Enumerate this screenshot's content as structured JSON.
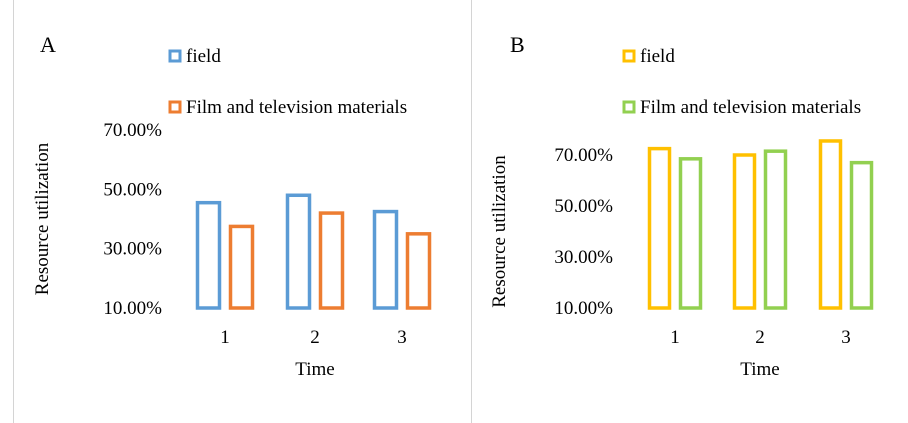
{
  "chart_data": [
    {
      "panel_label": "A",
      "type": "bar",
      "categories": [
        "1",
        "2",
        "3"
      ],
      "series": [
        {
          "name": "field",
          "values": [
            45.5,
            48.0,
            42.5
          ],
          "color": "#5b9bd5"
        },
        {
          "name": "Film and television materials",
          "values": [
            37.5,
            42.0,
            35.0
          ],
          "color": "#ed7d31"
        }
      ],
      "xlabel": "Time",
      "ylabel": "Resource utilization",
      "yticks": [
        "10.00%",
        "30.00%",
        "50.00%",
        "70.00%"
      ],
      "ylim": [
        10,
        70
      ],
      "legend_position": "top-left",
      "grid": false
    },
    {
      "panel_label": "B",
      "type": "bar",
      "categories": [
        "1",
        "2",
        "3"
      ],
      "series": [
        {
          "name": "field",
          "values": [
            72.5,
            70.0,
            75.5
          ],
          "color": "#ffc000"
        },
        {
          "name": "Film and television materials",
          "values": [
            68.5,
            71.5,
            67.0
          ],
          "color": "#92d050"
        }
      ],
      "xlabel": "Time",
      "ylabel": "Resource utilization",
      "yticks": [
        "10.00%",
        "30.00%",
        "50.00%",
        "70.00%"
      ],
      "ylim": [
        10,
        70
      ],
      "legend_position": "top-left",
      "grid": false
    }
  ]
}
